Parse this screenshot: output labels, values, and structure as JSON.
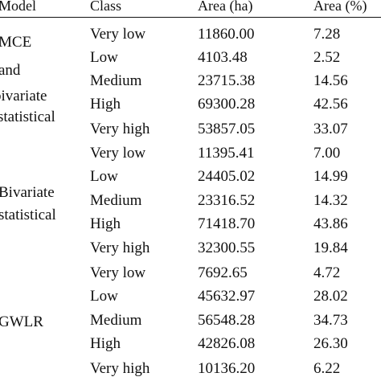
{
  "header": {
    "model": "Model",
    "class": "Class",
    "area_ha": "Area (ha)",
    "area_pct": "Area (%)"
  },
  "models": [
    {
      "name_lines": [
        "MCE",
        "and",
        "bivariate",
        "statistical"
      ],
      "rows": [
        {
          "class": "Very low",
          "area_ha": "11860.00",
          "area_pct": "7.28"
        },
        {
          "class": "Low",
          "area_ha": "4103.48",
          "area_pct": "2.52"
        },
        {
          "class": "Medium",
          "area_ha": "23715.38",
          "area_pct": "14.56"
        },
        {
          "class": "High",
          "area_ha": "69300.28",
          "area_pct": "42.56"
        },
        {
          "class": "Very high",
          "area_ha": "53857.05",
          "area_pct": "33.07"
        }
      ]
    },
    {
      "name_lines": [
        "Bivariate",
        "statistical"
      ],
      "rows": [
        {
          "class": "Very low",
          "area_ha": "11395.41",
          "area_pct": "7.00"
        },
        {
          "class": "Low",
          "area_ha": "24405.02",
          "area_pct": "14.99"
        },
        {
          "class": "Medium",
          "area_ha": "23316.52",
          "area_pct": "14.32"
        },
        {
          "class": "High",
          "area_ha": "71418.70",
          "area_pct": "43.86"
        },
        {
          "class": "Very high",
          "area_ha": "32300.55",
          "area_pct": "19.84"
        }
      ]
    },
    {
      "name_lines": [
        "GWLR"
      ],
      "rows": [
        {
          "class": "Very low",
          "area_ha": "7692.65",
          "area_pct": "4.72"
        },
        {
          "class": "Low",
          "area_ha": "45632.97",
          "area_pct": "28.02"
        },
        {
          "class": "Medium",
          "area_ha": "56548.28",
          "area_pct": "34.73"
        },
        {
          "class": "High",
          "area_ha": "42826.08",
          "area_pct": "26.30"
        },
        {
          "class": "Very high",
          "area_ha": "10136.20",
          "area_pct": "6.22"
        }
      ]
    }
  ]
}
